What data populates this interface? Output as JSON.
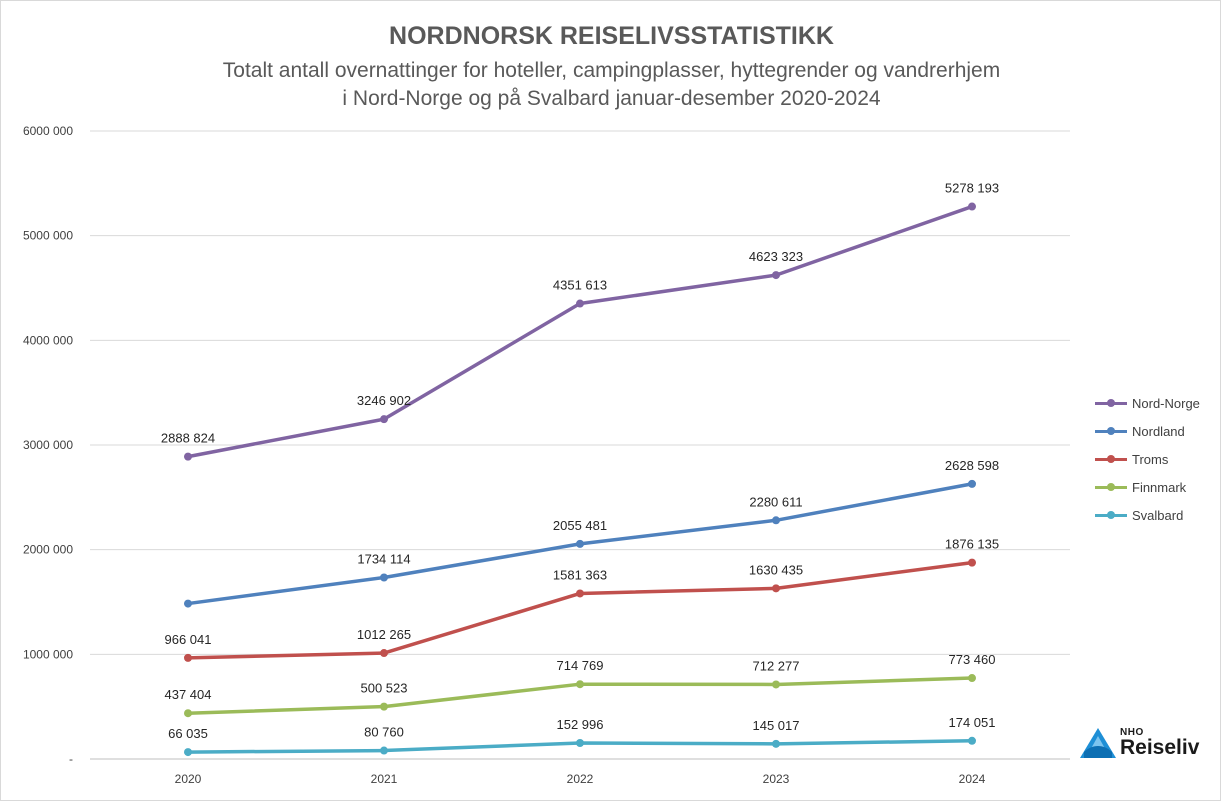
{
  "chart_data": {
    "type": "line",
    "title": "NORDNORSK REISELIVSSTATISTIKK",
    "subtitle_line1": "Totalt antall overnattinger for hoteller, campingplasser, hyttegrender og vandrerhjem",
    "subtitle_line2": "i Nord-Norge og på Svalbard januar-desember 2020-2024",
    "categories": [
      "2020",
      "2021",
      "2022",
      "2023",
      "2024"
    ],
    "ylim": [
      0,
      6000000
    ],
    "yticks": [
      0,
      1000000,
      2000000,
      3000000,
      4000000,
      5000000,
      6000000
    ],
    "ytick_labels": [
      "-",
      "1000 000",
      "2000 000",
      "3000 000",
      "4000 000",
      "5000 000",
      "6000 000"
    ],
    "grid": true,
    "legend_position": "right",
    "series": [
      {
        "name": "Nord-Norge",
        "color": "#8064a2",
        "values": [
          2888824,
          3246902,
          4351613,
          4623323,
          5278193
        ],
        "labels": [
          "2888 824",
          "3246 902",
          "4351 613",
          "4623 323",
          "5278 193"
        ]
      },
      {
        "name": "Nordland",
        "color": "#4f81bd",
        "values": [
          1485000,
          1734114,
          2055481,
          2280611,
          2628598
        ],
        "labels": [
          "",
          "1734 114",
          "2055 481",
          "2280 611",
          "2628 598"
        ]
      },
      {
        "name": "Troms",
        "color": "#c0504d",
        "values": [
          966041,
          1012265,
          1581363,
          1630435,
          1876135
        ],
        "labels": [
          "966 041",
          "1012 265",
          "1581 363",
          "1630 435",
          "1876 135"
        ]
      },
      {
        "name": "Finnmark",
        "color": "#9bbb59",
        "values": [
          437404,
          500523,
          714769,
          712277,
          773460
        ],
        "labels": [
          "437 404",
          "500 523",
          "714 769",
          "712 277",
          "773 460"
        ]
      },
      {
        "name": "Svalbard",
        "color": "#4bacc6",
        "values": [
          66035,
          80760,
          152996,
          145017,
          174051
        ],
        "labels": [
          "66 035",
          "80 760",
          "152 996",
          "145 017",
          "174 051"
        ]
      }
    ]
  },
  "logo": {
    "top_text": "NHO",
    "name": "Reiseliv",
    "color": "#1e8fd6"
  }
}
